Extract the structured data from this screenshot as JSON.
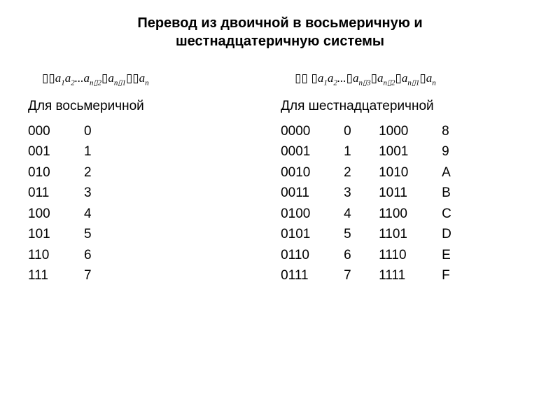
{
  "title_line1": "Перевод из двоичной в восьмеричную и",
  "title_line2": "шестнадцатеричную системы",
  "left": {
    "formula_html": "<span class='garble'>▯▯</span>a<span class='sub'>1</span>a<span class='sub'>2</span>...a<span class='sub'>n▯2</span><span class='garble'>▯</span>a<span class='sub'>n▯1</span><span class='garble'>▯▯</span>a<span class='sub'>n</span>",
    "subtitle": "Для восьмеричной",
    "rows": [
      {
        "bin": "000",
        "dig": "0"
      },
      {
        "bin": "001",
        "dig": "1"
      },
      {
        "bin": "010",
        "dig": "2"
      },
      {
        "bin": "011",
        "dig": "3"
      },
      {
        "bin": "100",
        "dig": "4"
      },
      {
        "bin": "101",
        "dig": "5"
      },
      {
        "bin": "110",
        "dig": "6"
      },
      {
        "bin": "111",
        "dig": "7"
      }
    ]
  },
  "right": {
    "formula_html": "<span class='garble'>▯▯ ▯</span>a<span class='sub'>1</span>a<span class='sub'>2</span>...<span class='garble'>▯</span>a<span class='sub'>n▯3</span><span class='garble'>▯</span>a<span class='sub'>n▯2</span><span class='garble'>▯</span>a<span class='sub'>n▯1</span><span class='garble'>▯</span>a<span class='sub'>n</span>",
    "subtitle": "Для шестнадцатеричной",
    "rows": [
      {
        "bin1": "0000",
        "d1": "0",
        "bin2": "1000",
        "d2": "8"
      },
      {
        "bin1": "0001",
        "d1": "1",
        "bin2": "1001",
        "d2": "9"
      },
      {
        "bin1": "0010",
        "d1": "2",
        "bin2": "1010",
        "d2": "A"
      },
      {
        "bin1": "0011",
        "d1": "3",
        "bin2": "1011",
        "d2": "B"
      },
      {
        "bin1": "0100",
        "d1": "4",
        "bin2": "1100",
        "d2": "C"
      },
      {
        "bin1": "0101",
        "d1": "5",
        "bin2": "1101",
        "d2": "D"
      },
      {
        "bin1": "0110",
        "d1": "6",
        "bin2": "1110",
        "d2": "E"
      },
      {
        "bin1": "0111",
        "d1": "7",
        "bin2": "1111",
        "d2": "F"
      }
    ]
  },
  "style": {
    "background_color": "#ffffff",
    "text_color": "#000000",
    "title_fontsize": 20,
    "title_fontweight": "bold",
    "subtitle_fontsize": 19,
    "body_fontsize": 19,
    "formula_fontsize": 17,
    "font_family": "Arial, sans-serif",
    "formula_font_family": "Times New Roman, serif"
  }
}
